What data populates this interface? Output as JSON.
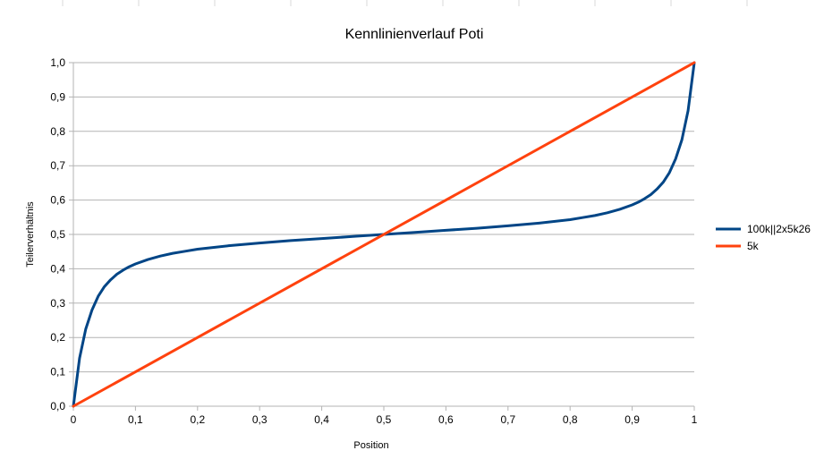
{
  "chart_data": {
    "type": "line",
    "title": "Kennlinienverlauf Poti",
    "xlabel": "Position",
    "ylabel": "Teilerverhältnis",
    "xlim": [
      0,
      1
    ],
    "ylim": [
      0,
      1
    ],
    "x_ticks": [
      "0",
      "0,1",
      "0,2",
      "0,3",
      "0,4",
      "0,5",
      "0,6",
      "0,7",
      "0,8",
      "0,9",
      "1"
    ],
    "y_ticks": [
      "0,0",
      "0,1",
      "0,2",
      "0,3",
      "0,4",
      "0,5",
      "0,6",
      "0,7",
      "0,8",
      "0,9",
      "1,0"
    ],
    "grid": true,
    "legend_position": "right",
    "series": [
      {
        "name": "100k||2x5k26",
        "color": "#004586",
        "points": [
          [
            0,
            0
          ],
          [
            0.01,
            0.14
          ],
          [
            0.02,
            0.225
          ],
          [
            0.03,
            0.28
          ],
          [
            0.04,
            0.32
          ],
          [
            0.05,
            0.348
          ],
          [
            0.06,
            0.368
          ],
          [
            0.07,
            0.384
          ],
          [
            0.08,
            0.396
          ],
          [
            0.09,
            0.406
          ],
          [
            0.1,
            0.414
          ],
          [
            0.12,
            0.427
          ],
          [
            0.14,
            0.437
          ],
          [
            0.16,
            0.445
          ],
          [
            0.18,
            0.451
          ],
          [
            0.2,
            0.457
          ],
          [
            0.25,
            0.467
          ],
          [
            0.3,
            0.475
          ],
          [
            0.35,
            0.482
          ],
          [
            0.4,
            0.488
          ],
          [
            0.45,
            0.494
          ],
          [
            0.5,
            0.5
          ],
          [
            0.55,
            0.506
          ],
          [
            0.6,
            0.512
          ],
          [
            0.65,
            0.518
          ],
          [
            0.7,
            0.525
          ],
          [
            0.75,
            0.533
          ],
          [
            0.8,
            0.543
          ],
          [
            0.82,
            0.549
          ],
          [
            0.84,
            0.555
          ],
          [
            0.86,
            0.563
          ],
          [
            0.88,
            0.573
          ],
          [
            0.9,
            0.586
          ],
          [
            0.91,
            0.594
          ],
          [
            0.92,
            0.604
          ],
          [
            0.93,
            0.616
          ],
          [
            0.94,
            0.632
          ],
          [
            0.95,
            0.652
          ],
          [
            0.96,
            0.68
          ],
          [
            0.97,
            0.72
          ],
          [
            0.98,
            0.775
          ],
          [
            0.99,
            0.86
          ],
          [
            1.0,
            1.0
          ]
        ]
      },
      {
        "name": "5k",
        "color": "#ff420e",
        "points": [
          [
            0,
            0
          ],
          [
            1,
            1
          ]
        ]
      }
    ]
  }
}
